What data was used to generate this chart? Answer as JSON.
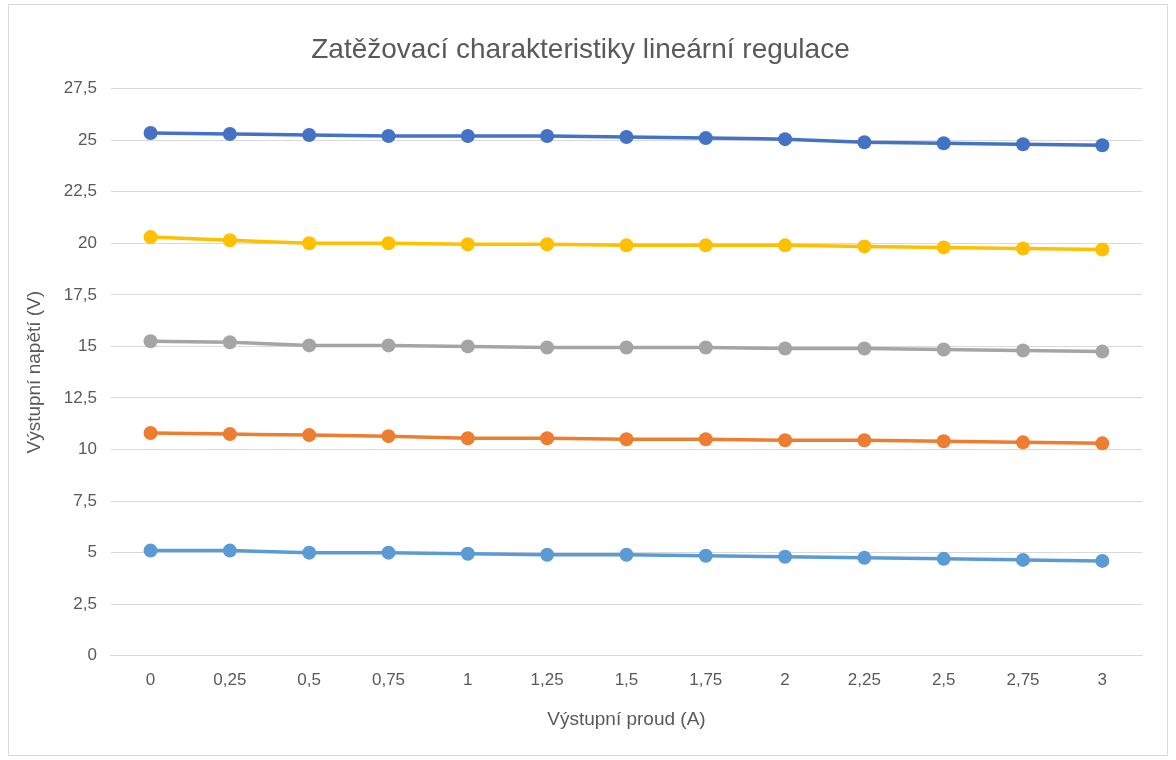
{
  "chart_data": {
    "type": "line",
    "title": "Zatěžovací charakteristiky lineární regulace",
    "xlabel": "Výstupní proud (A)",
    "ylabel": "Výstupní napětí (V)",
    "categories": [
      "0",
      "0,25",
      "0,5",
      "0,75",
      "1",
      "1,25",
      "1,5",
      "1,75",
      "2",
      "2,25",
      "2,5",
      "2,75",
      "3"
    ],
    "series": [
      {
        "color": "#5b9bd5",
        "values": [
          5.1,
          5.1,
          5.0,
          5.0,
          4.95,
          4.9,
          4.9,
          4.85,
          4.8,
          4.75,
          4.7,
          4.65,
          4.6
        ]
      },
      {
        "color": "#ed7d31",
        "values": [
          10.8,
          10.75,
          10.7,
          10.65,
          10.55,
          10.55,
          10.5,
          10.5,
          10.45,
          10.45,
          10.4,
          10.35,
          10.3
        ]
      },
      {
        "color": "#a5a5a5",
        "values": [
          15.25,
          15.2,
          15.05,
          15.05,
          15.0,
          14.95,
          14.95,
          14.95,
          14.9,
          14.9,
          14.85,
          14.8,
          14.75
        ]
      },
      {
        "color": "#ffc000",
        "values": [
          20.3,
          20.15,
          20.0,
          20.0,
          19.95,
          19.95,
          19.9,
          19.9,
          19.9,
          19.85,
          19.8,
          19.75,
          19.7
        ]
      },
      {
        "color": "#4472c4",
        "values": [
          25.35,
          25.3,
          25.25,
          25.2,
          25.2,
          25.2,
          25.15,
          25.1,
          25.05,
          24.9,
          24.85,
          24.8,
          24.75
        ]
      }
    ],
    "ylim": [
      0,
      27.5
    ],
    "yticks": [
      0,
      {
        "value": 2.5,
        "label": "2,5"
      },
      5,
      {
        "value": 7.5,
        "label": "7,5"
      },
      10,
      {
        "value": 12.5,
        "label": "12,5"
      },
      15,
      {
        "value": 17.5,
        "label": "17,5"
      },
      20,
      {
        "value": 22.5,
        "label": "22,5"
      },
      25,
      {
        "value": 27.5,
        "label": "27,5"
      }
    ],
    "grid": "y",
    "legend": false,
    "marker": "circle",
    "line_style": "solid"
  }
}
